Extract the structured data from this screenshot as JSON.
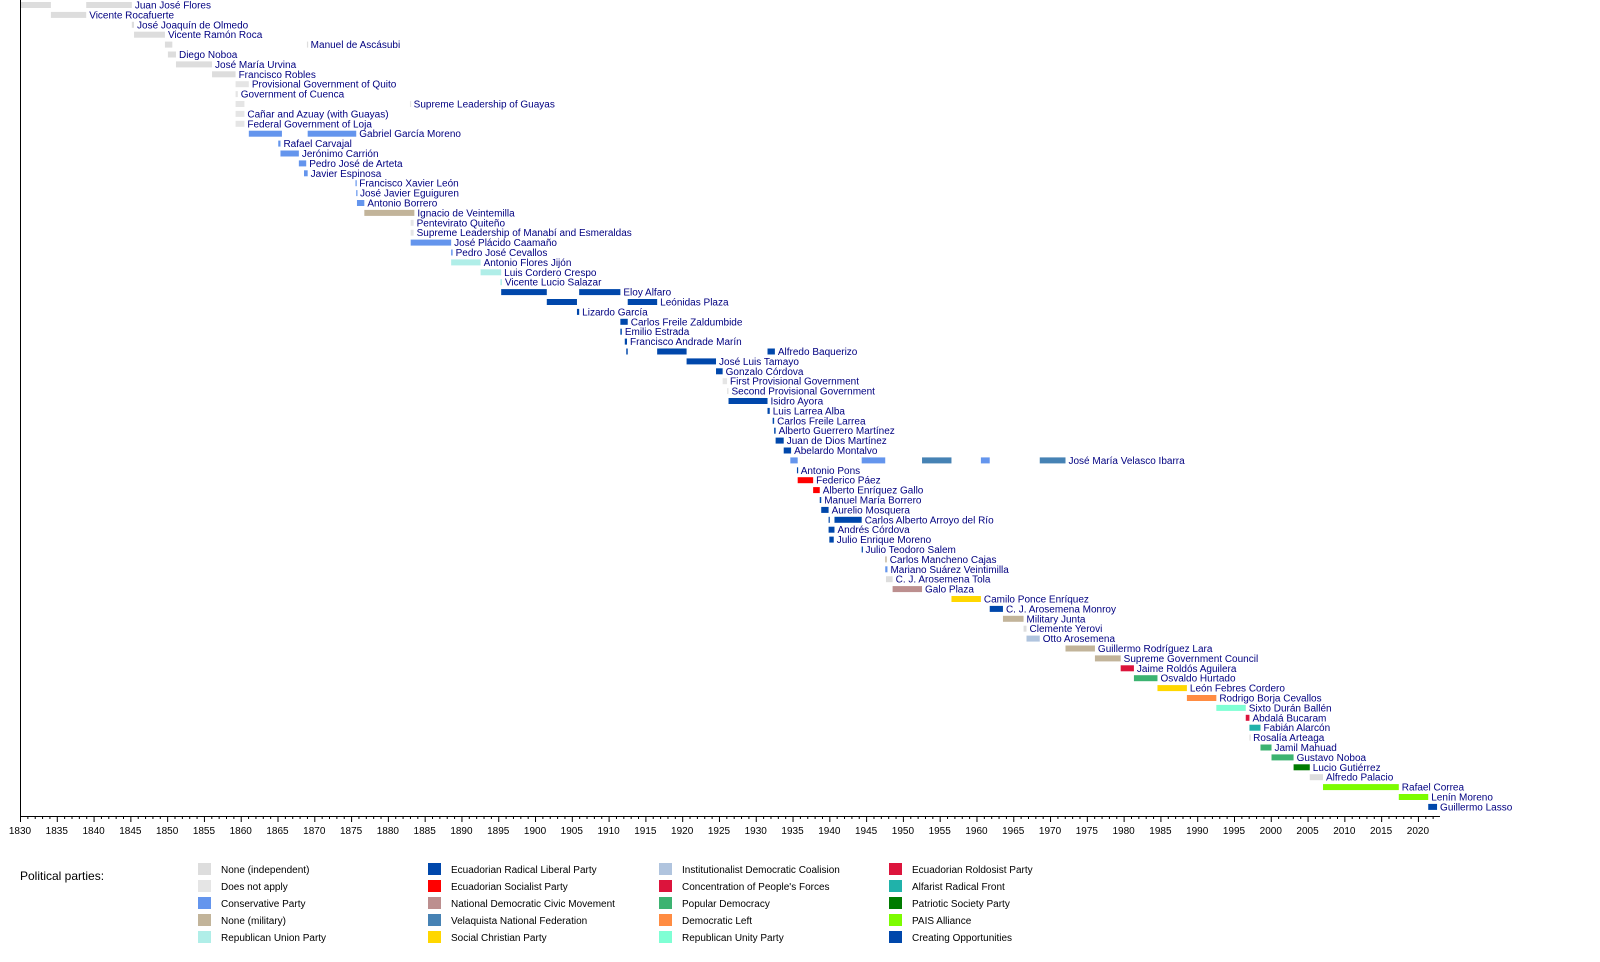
{
  "chart_data": {
    "type": "timeline",
    "xlim": [
      1830,
      2023
    ],
    "x_ticks": [
      1830,
      1835,
      1840,
      1845,
      1850,
      1855,
      1860,
      1865,
      1870,
      1875,
      1880,
      1885,
      1890,
      1895,
      1900,
      1905,
      1910,
      1915,
      1920,
      1925,
      1930,
      1935,
      1940,
      1945,
      1950,
      1955,
      1960,
      1965,
      1970,
      1975,
      1980,
      1985,
      1990,
      1995,
      2000,
      2005,
      2010,
      2015,
      2020
    ],
    "legend_title": "Political parties:",
    "parties": [
      {
        "key": "ind",
        "name": "None (independent)",
        "color": "#dddddd"
      },
      {
        "key": "na",
        "name": "Does not apply",
        "color": "#e5e5e5"
      },
      {
        "key": "con",
        "name": "Conservative Party",
        "color": "#6495ed"
      },
      {
        "key": "mil",
        "name": "None (military)",
        "color": "#c2b49a"
      },
      {
        "key": "rup",
        "name": "Republican Union Party",
        "color": "#b0eee8"
      },
      {
        "key": "lib",
        "name": "Ecuadorian Radical Liberal Party",
        "color": "#0047ab"
      },
      {
        "key": "soc",
        "name": "Ecuadorian Socialist Party",
        "color": "#ff0000"
      },
      {
        "key": "mdn",
        "name": "National Democratic Civic Movement",
        "color": "#bc8f8f"
      },
      {
        "key": "fnv",
        "name": "Velaquista National Federation",
        "color": "#4682b4"
      },
      {
        "key": "psc",
        "name": "Social Christian Party",
        "color": "#ffd700"
      },
      {
        "key": "cid",
        "name": "Institutionalist Democratic Coalision",
        "color": "#b0c4de"
      },
      {
        "key": "cfp",
        "name": "Concentration of People's Forces",
        "color": "#dc143c"
      },
      {
        "key": "dp",
        "name": "Popular Democracy",
        "color": "#3cb371"
      },
      {
        "key": "id",
        "name": "Democratic Left",
        "color": "#ff8c42"
      },
      {
        "key": "pur",
        "name": "Republican Unity Party",
        "color": "#7fffd4"
      },
      {
        "key": "pre",
        "name": "Ecuadorian Roldosist Party",
        "color": "#dc143c"
      },
      {
        "key": "far",
        "name": "Alfarist Radical Front",
        "color": "#20b2aa"
      },
      {
        "key": "sp",
        "name": "Patriotic Society Party",
        "color": "#007b00"
      },
      {
        "key": "pais",
        "name": "PAIS Alliance",
        "color": "#7cfc00"
      },
      {
        "key": "creo",
        "name": "Creating Opportunities",
        "color": "#0047ab"
      }
    ],
    "rows": [
      {
        "label": "Juan José Flores",
        "spans": [
          [
            1830,
            1834.2,
            "ind"
          ],
          [
            1839,
            1845.2,
            "ind"
          ]
        ]
      },
      {
        "label": "Vicente Rocafuerte",
        "spans": [
          [
            1834.2,
            1839,
            "ind"
          ]
        ]
      },
      {
        "label": "José Joaquín de Olmedo",
        "spans": [
          [
            1845.2,
            1845.5,
            "ind"
          ]
        ]
      },
      {
        "label": "Vicente Ramón Roca",
        "spans": [
          [
            1845.5,
            1849.7,
            "ind"
          ]
        ]
      },
      {
        "label": "Manuel de Ascásubi",
        "spans": [
          [
            1849.7,
            1850.7,
            "ind"
          ],
          [
            1869,
            1869.1,
            "ind"
          ]
        ]
      },
      {
        "label": "Diego Noboa",
        "spans": [
          [
            1850.1,
            1851.2,
            "ind"
          ]
        ]
      },
      {
        "label": "José María Urvina",
        "spans": [
          [
            1851.2,
            1856.1,
            "ind"
          ]
        ]
      },
      {
        "label": "Francisco Robles",
        "spans": [
          [
            1856.1,
            1859.3,
            "ind"
          ]
        ]
      },
      {
        "label": "Provisional Government of Quito",
        "spans": [
          [
            1859.3,
            1861.1,
            "na"
          ]
        ]
      },
      {
        "label": "Government of Cuenca",
        "spans": [
          [
            1859.3,
            1859.6,
            "na"
          ]
        ]
      },
      {
        "label": "Supreme Leadership of Guayas",
        "spans": [
          [
            1859.3,
            1860.5,
            "na"
          ],
          [
            1883,
            1883.1,
            "na"
          ]
        ]
      },
      {
        "label": "Cañar and Azuay (with Guayas)",
        "spans": [
          [
            1859.3,
            1860.5,
            "na"
          ]
        ]
      },
      {
        "label": "Federal Government of Loja",
        "spans": [
          [
            1859.3,
            1860.5,
            "na"
          ]
        ]
      },
      {
        "label": "Gabriel García Moreno",
        "spans": [
          [
            1861.1,
            1865.6,
            "con"
          ],
          [
            1869.1,
            1875.7,
            "con"
          ]
        ]
      },
      {
        "label": "Rafael Carvajal",
        "spans": [
          [
            1865.1,
            1865.4,
            "con"
          ]
        ]
      },
      {
        "label": "Jerónimo Carrión",
        "spans": [
          [
            1865.4,
            1867.9,
            "con"
          ]
        ]
      },
      {
        "label": "Pedro José de Arteta",
        "spans": [
          [
            1867.9,
            1868.9,
            "con"
          ]
        ]
      },
      {
        "label": "Javier Espinosa",
        "spans": [
          [
            1868.6,
            1869.1,
            "con"
          ]
        ]
      },
      {
        "label": "Francisco Xavier León",
        "spans": [
          [
            1875.6,
            1875.7,
            "con"
          ]
        ]
      },
      {
        "label": "José Javier Eguiguren",
        "spans": [
          [
            1875.7,
            1875.8,
            "con"
          ]
        ]
      },
      {
        "label": "Antonio Borrero",
        "spans": [
          [
            1875.8,
            1876.8,
            "con"
          ]
        ]
      },
      {
        "label": "Ignacio de Veintemilla",
        "spans": [
          [
            1876.8,
            1883.6,
            "mil"
          ]
        ]
      },
      {
        "label": "Pentevirato Quiteño",
        "spans": [
          [
            1883.1,
            1883.5,
            "na"
          ]
        ]
      },
      {
        "label": "Supreme Leadership of Manabí and Esmeraldas",
        "spans": [
          [
            1883.1,
            1883.5,
            "na"
          ]
        ]
      },
      {
        "label": "José Plácido Caamaño",
        "spans": [
          [
            1883.1,
            1888.6,
            "con"
          ]
        ]
      },
      {
        "label": "Pedro José Cevallos",
        "spans": [
          [
            1888.6,
            1888.8,
            "con"
          ]
        ]
      },
      {
        "label": "Antonio Flores Jijón",
        "spans": [
          [
            1888.6,
            1892.6,
            "rup"
          ]
        ]
      },
      {
        "label": "Luis Cordero Crespo",
        "spans": [
          [
            1892.6,
            1895.4,
            "rup"
          ]
        ]
      },
      {
        "label": "Vicente Lucio Salazar",
        "spans": [
          [
            1895.3,
            1895.5,
            "rup"
          ]
        ]
      },
      {
        "label": "Eloy Alfaro",
        "spans": [
          [
            1895.4,
            1901.6,
            "lib"
          ],
          [
            1906.0,
            1911.6,
            "lib"
          ]
        ]
      },
      {
        "label": "Leónidas Plaza",
        "spans": [
          [
            1901.6,
            1905.7,
            "lib"
          ],
          [
            1912.6,
            1916.6,
            "lib"
          ]
        ]
      },
      {
        "label": "Lizardo García",
        "spans": [
          [
            1905.7,
            1906.0,
            "lib"
          ]
        ]
      },
      {
        "label": "Carlos Freile Zaldumbide",
        "spans": [
          [
            1911.6,
            1912.6,
            "lib"
          ]
        ]
      },
      {
        "label": "Emilio Estrada",
        "spans": [
          [
            1911.6,
            1911.8,
            "lib"
          ]
        ]
      },
      {
        "label": "Francisco Andrade Marín",
        "spans": [
          [
            1912.2,
            1912.5,
            "lib"
          ]
        ]
      },
      {
        "label": "Alfredo Baquerizo",
        "spans": [
          [
            1912.4,
            1912.6,
            "lib"
          ],
          [
            1916.6,
            1920.6,
            "lib"
          ],
          [
            1931.6,
            1932.6,
            "lib"
          ]
        ]
      },
      {
        "label": "José Luis Tamayo",
        "spans": [
          [
            1920.6,
            1924.6,
            "lib"
          ]
        ]
      },
      {
        "label": "Gonzalo Córdova",
        "spans": [
          [
            1924.6,
            1925.5,
            "lib"
          ]
        ]
      },
      {
        "label": "First Provisional Government",
        "spans": [
          [
            1925.5,
            1926.1,
            "na"
          ]
        ]
      },
      {
        "label": "Second Provisional Government",
        "spans": [
          [
            1926.1,
            1926.3,
            "na"
          ]
        ]
      },
      {
        "label": "Isidro Ayora",
        "spans": [
          [
            1926.3,
            1931.6,
            "lib"
          ]
        ]
      },
      {
        "label": "Luis Larrea Alba",
        "spans": [
          [
            1931.6,
            1931.9,
            "lib"
          ]
        ]
      },
      {
        "label": "Carlos Freile Larrea",
        "spans": [
          [
            1932.3,
            1932.5,
            "lib"
          ]
        ]
      },
      {
        "label": "Alberto Guerrero Martínez",
        "spans": [
          [
            1932.5,
            1932.7,
            "lib"
          ]
        ]
      },
      {
        "label": "Juan de Dios Martínez",
        "spans": [
          [
            1932.7,
            1933.8,
            "lib"
          ]
        ]
      },
      {
        "label": "Abelardo Montalvo",
        "spans": [
          [
            1933.8,
            1934.8,
            "lib"
          ]
        ]
      },
      {
        "label": "José María Velasco Ibarra",
        "spans": [
          [
            1934.7,
            1935.7,
            "con"
          ],
          [
            1944.4,
            1947.6,
            "con"
          ],
          [
            1952.6,
            1956.6,
            "fnv"
          ],
          [
            1960.6,
            1961.8,
            "con"
          ],
          [
            1968.6,
            1972.1,
            "fnv"
          ]
        ]
      },
      {
        "label": "Antonio Pons",
        "spans": [
          [
            1935.6,
            1935.7,
            "lib"
          ]
        ]
      },
      {
        "label": "Federico Páez",
        "spans": [
          [
            1935.7,
            1937.8,
            "soc"
          ]
        ]
      },
      {
        "label": "Alberto Enríquez Gallo",
        "spans": [
          [
            1937.8,
            1938.7,
            "soc"
          ]
        ]
      },
      {
        "label": "Manuel María Borrero",
        "spans": [
          [
            1938.7,
            1938.9,
            "lib"
          ]
        ]
      },
      {
        "label": "Aurelio Mosquera",
        "spans": [
          [
            1938.9,
            1939.9,
            "lib"
          ]
        ]
      },
      {
        "label": "Carlos Alberto Arroyo del Río",
        "spans": [
          [
            1939.9,
            1940.0,
            "lib"
          ],
          [
            1940.7,
            1944.4,
            "lib"
          ]
        ]
      },
      {
        "label": "Andrés Córdova",
        "spans": [
          [
            1939.9,
            1940.7,
            "lib"
          ]
        ]
      },
      {
        "label": "Julio Enrique Moreno",
        "spans": [
          [
            1940.0,
            1940.6,
            "lib"
          ]
        ]
      },
      {
        "label": "Julio Teodoro Salem",
        "spans": [
          [
            1944.4,
            1944.5,
            "lib"
          ]
        ]
      },
      {
        "label": "Carlos Mancheno Cajas",
        "spans": [
          [
            1947.6,
            1947.8,
            "mil"
          ]
        ]
      },
      {
        "label": "Mariano Suárez Veintimilla",
        "spans": [
          [
            1947.6,
            1947.9,
            "con"
          ]
        ]
      },
      {
        "label": "C. J. Arosemena Tola",
        "spans": [
          [
            1947.7,
            1948.6,
            "ind"
          ]
        ]
      },
      {
        "label": "Galo Plaza",
        "spans": [
          [
            1948.6,
            1952.6,
            "mdn"
          ]
        ]
      },
      {
        "label": "Camilo Ponce Enríquez",
        "spans": [
          [
            1956.6,
            1960.6,
            "psc"
          ]
        ]
      },
      {
        "label": "C. J. Arosemena Monroy",
        "spans": [
          [
            1961.8,
            1963.6,
            "lib"
          ]
        ]
      },
      {
        "label": "Military Junta",
        "spans": [
          [
            1963.6,
            1966.4,
            "mil"
          ]
        ]
      },
      {
        "label": "Clemente Yerovi",
        "spans": [
          [
            1966.4,
            1966.8,
            "ind"
          ]
        ]
      },
      {
        "label": "Otto Arosemena",
        "spans": [
          [
            1966.8,
            1968.6,
            "cid"
          ]
        ]
      },
      {
        "label": "Guillermo Rodríguez Lara",
        "spans": [
          [
            1972.1,
            1976.1,
            "mil"
          ]
        ]
      },
      {
        "label": "Supreme Government Council",
        "spans": [
          [
            1976.1,
            1979.6,
            "mil"
          ]
        ]
      },
      {
        "label": "Jaime Roldós Aguilera",
        "spans": [
          [
            1979.6,
            1981.4,
            "cfp"
          ]
        ]
      },
      {
        "label": "Osvaldo Hurtado",
        "spans": [
          [
            1981.4,
            1984.6,
            "dp"
          ]
        ]
      },
      {
        "label": "León Febres Cordero",
        "spans": [
          [
            1984.6,
            1988.6,
            "psc"
          ]
        ]
      },
      {
        "label": "Rodrigo Borja Cevallos",
        "spans": [
          [
            1988.6,
            1992.6,
            "id"
          ]
        ]
      },
      {
        "label": "Sixto Durán Ballén",
        "spans": [
          [
            1992.6,
            1996.6,
            "pur"
          ]
        ]
      },
      {
        "label": "Abdalá Bucaram",
        "spans": [
          [
            1996.6,
            1997.1,
            "pre"
          ]
        ]
      },
      {
        "label": "Fabián Alarcón",
        "spans": [
          [
            1997.1,
            1998.6,
            "far"
          ]
        ]
      },
      {
        "label": "Rosalía Arteaga",
        "spans": [
          [
            1997.1,
            1997.2,
            "ind"
          ]
        ]
      },
      {
        "label": "Jamil Mahuad",
        "spans": [
          [
            1998.6,
            2000.1,
            "dp"
          ]
        ]
      },
      {
        "label": "Gustavo Noboa",
        "spans": [
          [
            2000.1,
            2003.1,
            "dp"
          ]
        ]
      },
      {
        "label": "Lucio Gutiérrez",
        "spans": [
          [
            2003.1,
            2005.3,
            "sp"
          ]
        ]
      },
      {
        "label": "Alfredo Palacio",
        "spans": [
          [
            2005.3,
            2007.1,
            "ind"
          ]
        ]
      },
      {
        "label": "Rafael Correa",
        "spans": [
          [
            2007.1,
            2017.4,
            "pais"
          ]
        ]
      },
      {
        "label": "Lenín Moreno",
        "spans": [
          [
            2017.4,
            2021.4,
            "pais"
          ]
        ]
      },
      {
        "label": "Guillermo Lasso",
        "spans": [
          [
            2021.4,
            2022.6,
            "creo"
          ]
        ]
      }
    ]
  }
}
